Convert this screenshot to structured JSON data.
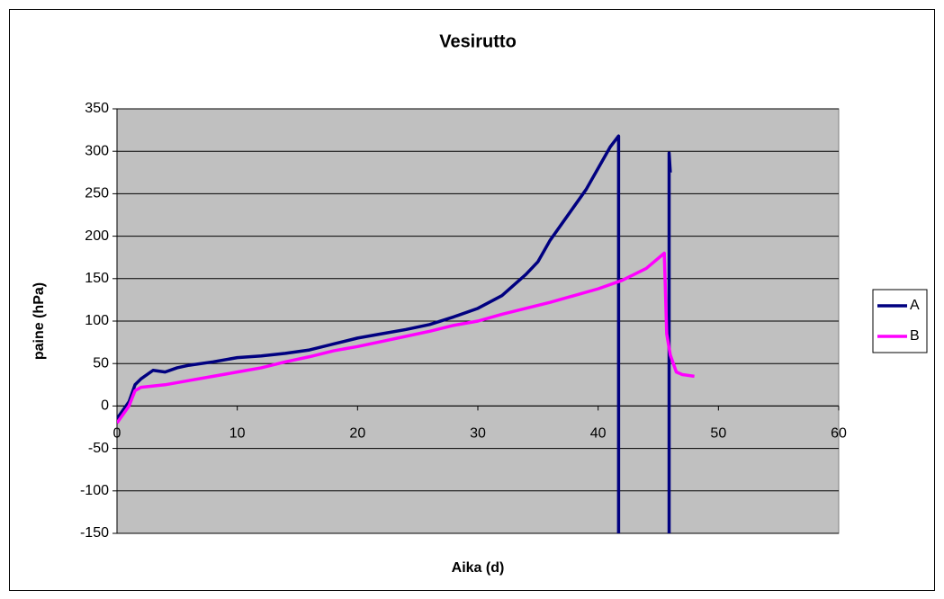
{
  "chart_data": {
    "type": "line",
    "title": "Vesirutto",
    "x_label": "Aika (d)",
    "y_label": "paine (hPa)",
    "xlim": [
      0,
      60
    ],
    "xticks": [
      0,
      10,
      20,
      30,
      40,
      50,
      60
    ],
    "ylim": [
      -150,
      350
    ],
    "yticks": [
      -150,
      -100,
      -50,
      0,
      50,
      100,
      150,
      200,
      250,
      300,
      350
    ],
    "grid": true,
    "legend": "right",
    "series": [
      {
        "name": "A",
        "color": "#000080",
        "x": [
          0,
          0.5,
          1,
          1.5,
          2,
          3,
          4,
          5,
          6,
          8,
          10,
          12,
          14,
          16,
          18,
          20,
          22,
          24,
          26,
          28,
          30,
          32,
          34,
          35,
          36,
          37,
          38,
          39,
          40,
          41,
          41.7,
          41.7,
          45.9,
          45.9,
          45.9,
          46
        ],
        "values": [
          -15,
          -5,
          5,
          25,
          32,
          42,
          40,
          45,
          48,
          52,
          57,
          59,
          62,
          66,
          73,
          80,
          85,
          90,
          96,
          105,
          115,
          130,
          155,
          170,
          195,
          215,
          235,
          255,
          280,
          305,
          318,
          -150,
          null,
          -150,
          298,
          275
        ]
      },
      {
        "name": "B",
        "color": "#ff00ff",
        "x": [
          0,
          0.5,
          1,
          1.5,
          2,
          4,
          6,
          8,
          10,
          12,
          14,
          16,
          18,
          20,
          22,
          24,
          26,
          28,
          30,
          32,
          34,
          36,
          38,
          40,
          42,
          44,
          45.5,
          45.7,
          46,
          46.5,
          47,
          48
        ],
        "values": [
          -20,
          -10,
          0,
          18,
          22,
          25,
          30,
          35,
          40,
          45,
          52,
          58,
          65,
          70,
          76,
          82,
          88,
          95,
          100,
          108,
          115,
          122,
          130,
          138,
          148,
          162,
          180,
          85,
          60,
          40,
          37,
          35
        ]
      }
    ]
  }
}
